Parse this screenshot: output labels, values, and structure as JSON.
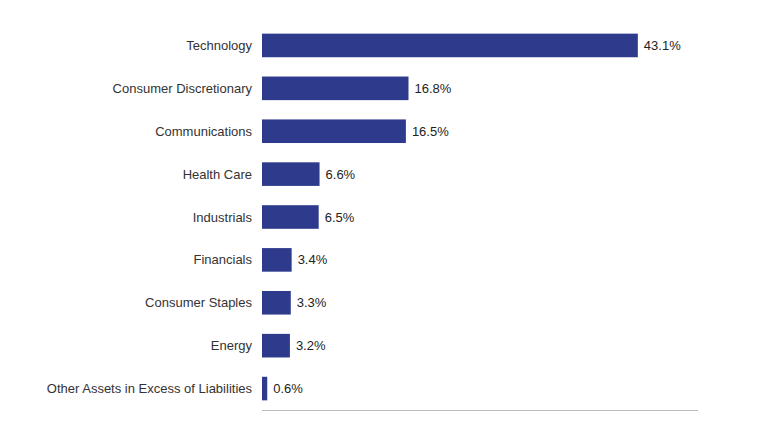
{
  "chart_data": {
    "type": "bar",
    "orientation": "horizontal",
    "categories": [
      "Technology",
      "Consumer Discretionary",
      "Communications",
      "Health Care",
      "Industrials",
      "Financials",
      "Consumer Staples",
      "Energy",
      "Other Assets in Excess of Liabilities"
    ],
    "values": [
      43.1,
      16.8,
      16.5,
      6.6,
      6.5,
      3.4,
      3.3,
      3.2,
      0.6
    ],
    "value_labels": [
      "43.1%",
      "16.8%",
      "16.5%",
      "6.6%",
      "6.5%",
      "3.4%",
      "3.3%",
      "3.2%",
      "0.6%"
    ],
    "color": "#2e3a8c",
    "xlim": [
      0,
      50
    ],
    "data_labels": true,
    "tick_labels": "y",
    "grid": false
  }
}
